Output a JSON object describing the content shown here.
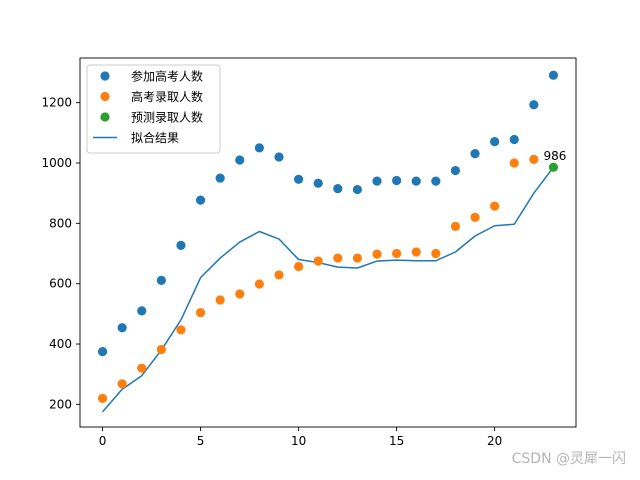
{
  "chart_data": {
    "type": "scatter",
    "x": [
      0,
      1,
      2,
      3,
      4,
      5,
      6,
      7,
      8,
      9,
      10,
      11,
      12,
      13,
      14,
      15,
      16,
      17,
      18,
      19,
      20,
      21,
      22,
      23
    ],
    "series": [
      {
        "name": "参加高考人数",
        "kind": "scatter",
        "color": "#1f77b4",
        "x": [
          0,
          1,
          2,
          3,
          4,
          5,
          6,
          7,
          8,
          9,
          10,
          11,
          12,
          13,
          14,
          15,
          16,
          17,
          18,
          19,
          20,
          21,
          22,
          23
        ],
        "values": [
          375,
          454,
          510,
          611,
          727,
          877,
          950,
          1010,
          1050,
          1020,
          946,
          933,
          915,
          912,
          940,
          942,
          940,
          940,
          975,
          1031,
          1071,
          1078,
          1193,
          1291
        ]
      },
      {
        "name": "高考录取人数",
        "kind": "scatter",
        "color": "#ff7f0e",
        "x": [
          0,
          1,
          2,
          3,
          4,
          5,
          6,
          7,
          8,
          9,
          10,
          11,
          12,
          13,
          14,
          15,
          16,
          17,
          18,
          19,
          20,
          21,
          22
        ],
        "values": [
          220,
          268,
          320,
          382,
          447,
          504,
          546,
          566,
          599,
          629,
          657,
          675,
          685,
          685,
          698,
          700,
          705,
          700,
          790,
          820,
          857,
          1000,
          1012
        ]
      },
      {
        "name": "预测录取人数",
        "kind": "scatter",
        "color": "#2ca02c",
        "x": [
          23
        ],
        "values": [
          986
        ]
      },
      {
        "name": "拟合结果",
        "kind": "line",
        "color": "#1f77b4",
        "x": [
          0,
          1,
          2,
          3,
          4,
          5,
          6,
          7,
          8,
          9,
          10,
          11,
          12,
          13,
          14,
          15,
          16,
          17,
          18,
          19,
          20,
          21,
          22,
          23
        ],
        "values": [
          175,
          250,
          295,
          380,
          480,
          620,
          685,
          738,
          773,
          748,
          680,
          670,
          655,
          652,
          675,
          678,
          676,
          676,
          705,
          758,
          792,
          797,
          900,
          986
        ]
      }
    ],
    "xlim": [
      -1.15,
      24.15
    ],
    "ylim": [
      125,
      1348
    ],
    "xticks": [
      0,
      5,
      10,
      15,
      20
    ],
    "yticks": [
      200,
      400,
      600,
      800,
      1000,
      1200
    ],
    "annotation": {
      "text": "986",
      "x": 23,
      "y": 986
    },
    "legend_position": "top-left",
    "grid": false
  },
  "watermark": "CSDN @灵犀一闪"
}
